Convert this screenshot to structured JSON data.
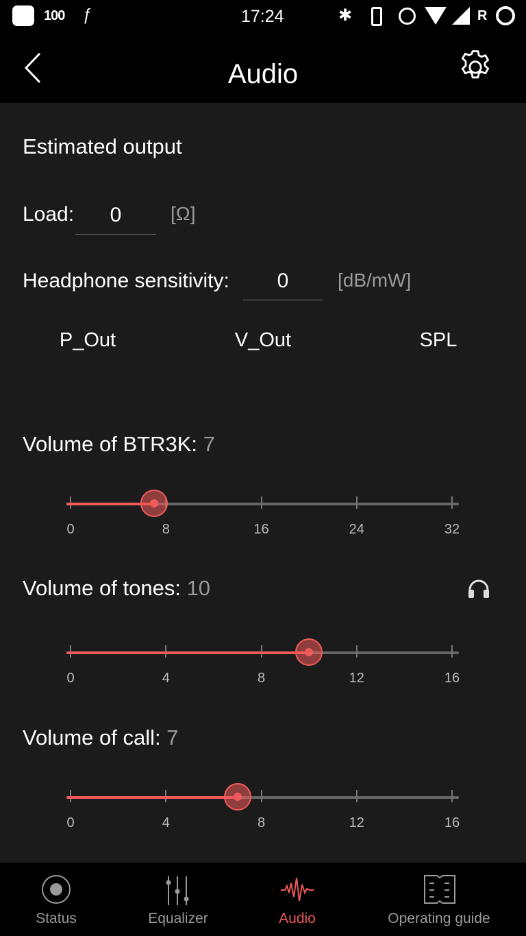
{
  "status_bar": {
    "battery": "100",
    "time": "17:24",
    "carrier_indicator": "R"
  },
  "header": {
    "title": "Audio",
    "back_icon": "chevron-left-icon",
    "settings_icon": "gear-icon"
  },
  "estimated_output": {
    "title": "Estimated output",
    "load_label": "Load:",
    "load_value": "0",
    "load_unit": "[Ω]",
    "sensitivity_label": "Headphone sensitivity:",
    "sensitivity_value": "0",
    "sensitivity_unit": "[dB/mW]",
    "columns": [
      "P_Out",
      "V_Out",
      "SPL"
    ]
  },
  "sliders": [
    {
      "label": "Volume of BTR3K:",
      "value": 7,
      "value_text": "7",
      "max": 32,
      "ticks": [
        "0",
        "8",
        "16",
        "24",
        "32"
      ]
    },
    {
      "label": "Volume of tones:",
      "value": 10,
      "value_text": "10",
      "max": 16,
      "ticks": [
        "0",
        "4",
        "8",
        "12",
        "16"
      ],
      "icon": "headphones-icon"
    },
    {
      "label": "Volume of call:",
      "value": 7,
      "value_text": "7",
      "max": 16,
      "ticks": [
        "0",
        "4",
        "8",
        "12",
        "16"
      ]
    }
  ],
  "nav": {
    "items": [
      {
        "label": "Status",
        "icon": "record-icon"
      },
      {
        "label": "Equalizer",
        "icon": "equalizer-icon"
      },
      {
        "label": "Audio",
        "icon": "waveform-icon",
        "active": true
      },
      {
        "label": "Operating guide",
        "icon": "book-icon"
      }
    ]
  },
  "colors": {
    "accent": "#f05a5a",
    "background": "#1b1b1b",
    "bar": "#000000"
  }
}
